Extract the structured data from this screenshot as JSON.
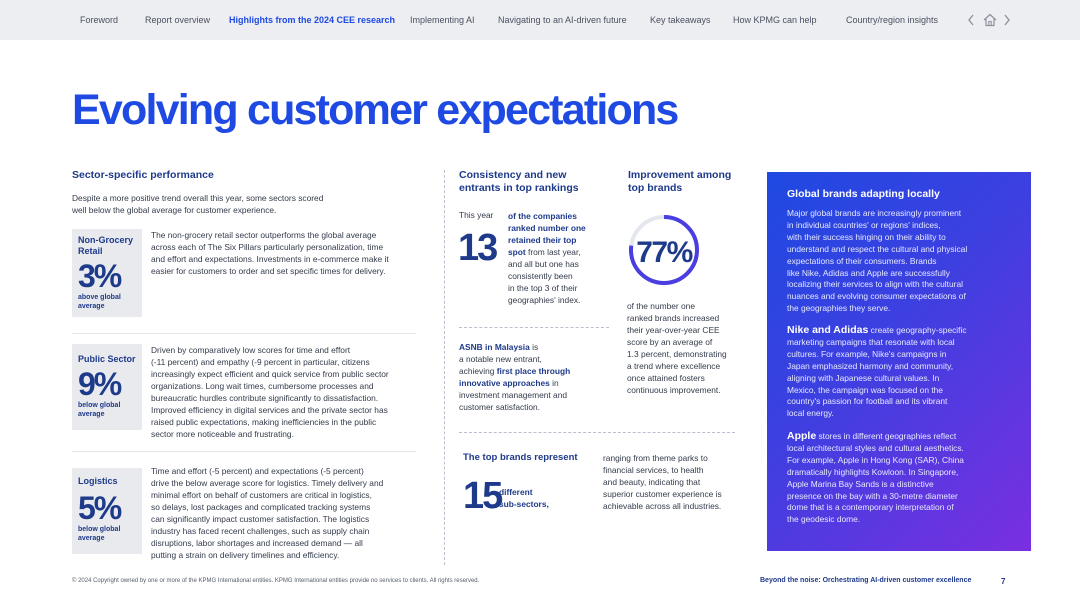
{
  "nav": {
    "items": [
      {
        "label": "Foreword",
        "active": false
      },
      {
        "label": "Report overview",
        "active": false
      },
      {
        "label": "Highlights from the 2024 CEE research",
        "active": true
      },
      {
        "label": "Implementing AI",
        "active": false
      },
      {
        "label": "Navigating to an AI-driven future",
        "active": false
      },
      {
        "label": "Key takeaways",
        "active": false
      },
      {
        "label": "How KPMG can help",
        "active": false
      },
      {
        "label": "Country/region insights",
        "active": false
      }
    ],
    "icons": [
      "chevron-left-icon",
      "home-icon",
      "chevron-right-icon"
    ]
  },
  "title": "Evolving customer expectations",
  "sector": {
    "heading": "Sector-specific performance",
    "intro_lines": [
      "Despite a more positive trend overall this year, some sectors scored",
      "well below the global average for customer experience."
    ],
    "items": [
      {
        "category_lines": [
          "Non-Grocery",
          "Retail"
        ],
        "value": "3%",
        "note_lines": [
          "above global",
          "average"
        ],
        "text_lines": [
          "The non-grocery retail sector outperforms the global average",
          "across each of The Six Pillars particularly personalization, time",
          "and effort and expectations. Investments in e-commerce make it",
          "easier for customers to order and set specific times for delivery."
        ]
      },
      {
        "category_lines": [
          "Public Sector"
        ],
        "value": "9%",
        "note_lines": [
          "below global",
          "average"
        ],
        "text_lines": [
          "Driven by comparatively low scores for time and effort",
          "(-11 percent) and empathy (-9 percent in particular, citizens",
          "increasingly expect efficient and quick service from public sector",
          "organizations. Long wait times, cumbersome processes and",
          "bureaucratic hurdles contribute significantly to dissatisfaction.",
          "Improved efficiency in digital services and the private sector has",
          "raised public expectations, making inefficiencies in the public",
          "sector more noticeable and frustrating."
        ]
      },
      {
        "category_lines": [
          "Logistics"
        ],
        "value": "5%",
        "note_lines": [
          "below global",
          "average"
        ],
        "text_lines": [
          "Time and effort (-5 percent) and expectations (-5 percent)",
          "drive the below average score for logistics. Timely delivery and",
          "minimal effort on behalf of customers are critical in logistics,",
          "so delays, lost packages and complicated tracking systems",
          "can significantly impact customer satisfaction. The logistics",
          "industry has faced recent challenges, such as supply chain",
          "disruptions, labor shortages and increased demand — all",
          "putting a strain on delivery timelines and efficiency."
        ]
      }
    ]
  },
  "consistency": {
    "heading_lines": [
      "Consistency and new",
      "entrants in top rankings"
    ],
    "this_year": "This year",
    "value": "13",
    "bold_lines": [
      "of the companies",
      "ranked number one",
      "retained their top"
    ],
    "spot_bold": "spot",
    "spot_rest": " from last year,",
    "rest_lines": [
      "and all but one has",
      "consistently been",
      "in the top 3 of their",
      "geographies' index."
    ],
    "asnb": {
      "name": "ASNB in Malaysia",
      "name_rest": " is",
      "line2": "a notable new entrant,",
      "line3_pre": "achieving ",
      "line3_bold": "first place through",
      "line4_bold": "innovative approaches",
      "line4_rest": " in",
      "line5": "investment management and",
      "line6": "customer satisfaction."
    }
  },
  "improvement": {
    "heading_lines": [
      "Improvement among",
      "top brands"
    ],
    "value": "77%",
    "percent": 77,
    "text_lines": [
      "of the number one",
      "ranked brands increased",
      "their year-over-year CEE",
      "score by an average of",
      "1.3 percent, demonstrating",
      "a trend where excellence",
      "once attained fosters",
      "continuous improvement."
    ]
  },
  "top_brands": {
    "heading": "The top brands represent",
    "value": "15",
    "bold_lines": [
      "different",
      "sub-sectors,"
    ],
    "text_lines": [
      "ranging from theme parks to",
      "financial services, to health",
      "and beauty, indicating that",
      "superior customer experience is",
      "achievable across all industries."
    ]
  },
  "panel": {
    "title": "Global brands adapting locally",
    "p1_lines": [
      "Major global brands are increasingly prominent",
      "in individual countries' or regions' indices,",
      "with their success hinging on their ability to",
      "understand and respect the cultural and physical",
      "expectations of their consumers. Brands",
      "like Nike, Adidas and Apple are successfully",
      "localizing their services to align with the cultural",
      "nuances and evolving consumer expectations of",
      "the geographies they serve."
    ],
    "p2_lead": "Nike and Adidas",
    "p2_first_rest": " create geography-specific",
    "p2_lines": [
      "marketing campaigns that resonate with local",
      "cultures. For example, Nike's campaigns in",
      "Japan emphasized harmony and community,",
      "aligning with Japanese cultural values. In",
      "Mexico, the campaign was focused on the",
      "country's passion for football and its vibrant",
      "local energy."
    ],
    "p3_lead": "Apple",
    "p3_first_rest": " stores in different geographies reflect",
    "p3_lines": [
      "local architectural styles and cultural aesthetics.",
      "For example, Apple in Hong Kong (SAR), China",
      "dramatically highlights Kowloon. In Singapore,",
      "Apple Marina Bay Sands is a distinctive",
      "presence on the bay with a 30-metre diameter",
      "dome that is a contemporary interpretation of",
      "the geodesic dome."
    ]
  },
  "footer": {
    "copyright": "© 2024 Copyright owned by one or more of the KPMG International entities. KPMG International entities provide no services to clients. All rights reserved.",
    "report_title": "Beyond the noise: Orchestrating AI-driven customer excellence",
    "page": "7"
  },
  "colors": {
    "accent": "#1e49e2",
    "navy": "#1e3a8a",
    "panel_start": "#1e49e2",
    "panel_end": "#7a2fe0",
    "nav_bg": "#eceef1"
  }
}
